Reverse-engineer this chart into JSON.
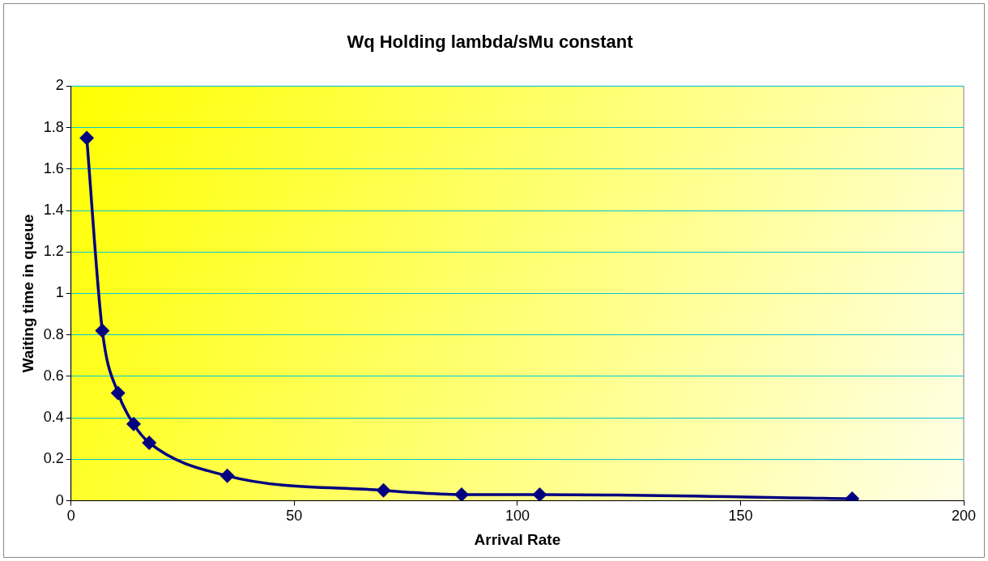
{
  "chart_data": {
    "type": "line",
    "title": "Wq Holding lambda/sMu constant",
    "xlabel": "Arrival Rate",
    "ylabel": "Waiting time in queue",
    "x": [
      3.5,
      7,
      10.5,
      14,
      17.5,
      35,
      70,
      87.5,
      105,
      175
    ],
    "series": [
      {
        "color": "#000080",
        "values": [
          1.75,
          0.82,
          0.52,
          0.37,
          0.28,
          0.12,
          0.05,
          0.03,
          0.03,
          0.01
        ]
      }
    ],
    "xlim": [
      0,
      200
    ],
    "xticks": [
      0,
      50,
      100,
      150,
      200
    ],
    "ylim": [
      0,
      2
    ],
    "yticks": [
      0,
      0.2,
      0.4,
      0.6,
      0.8,
      1,
      1.2,
      1.4,
      1.6,
      1.8,
      2
    ],
    "grid": "y",
    "marker": "diamond",
    "line_style": "solid"
  }
}
